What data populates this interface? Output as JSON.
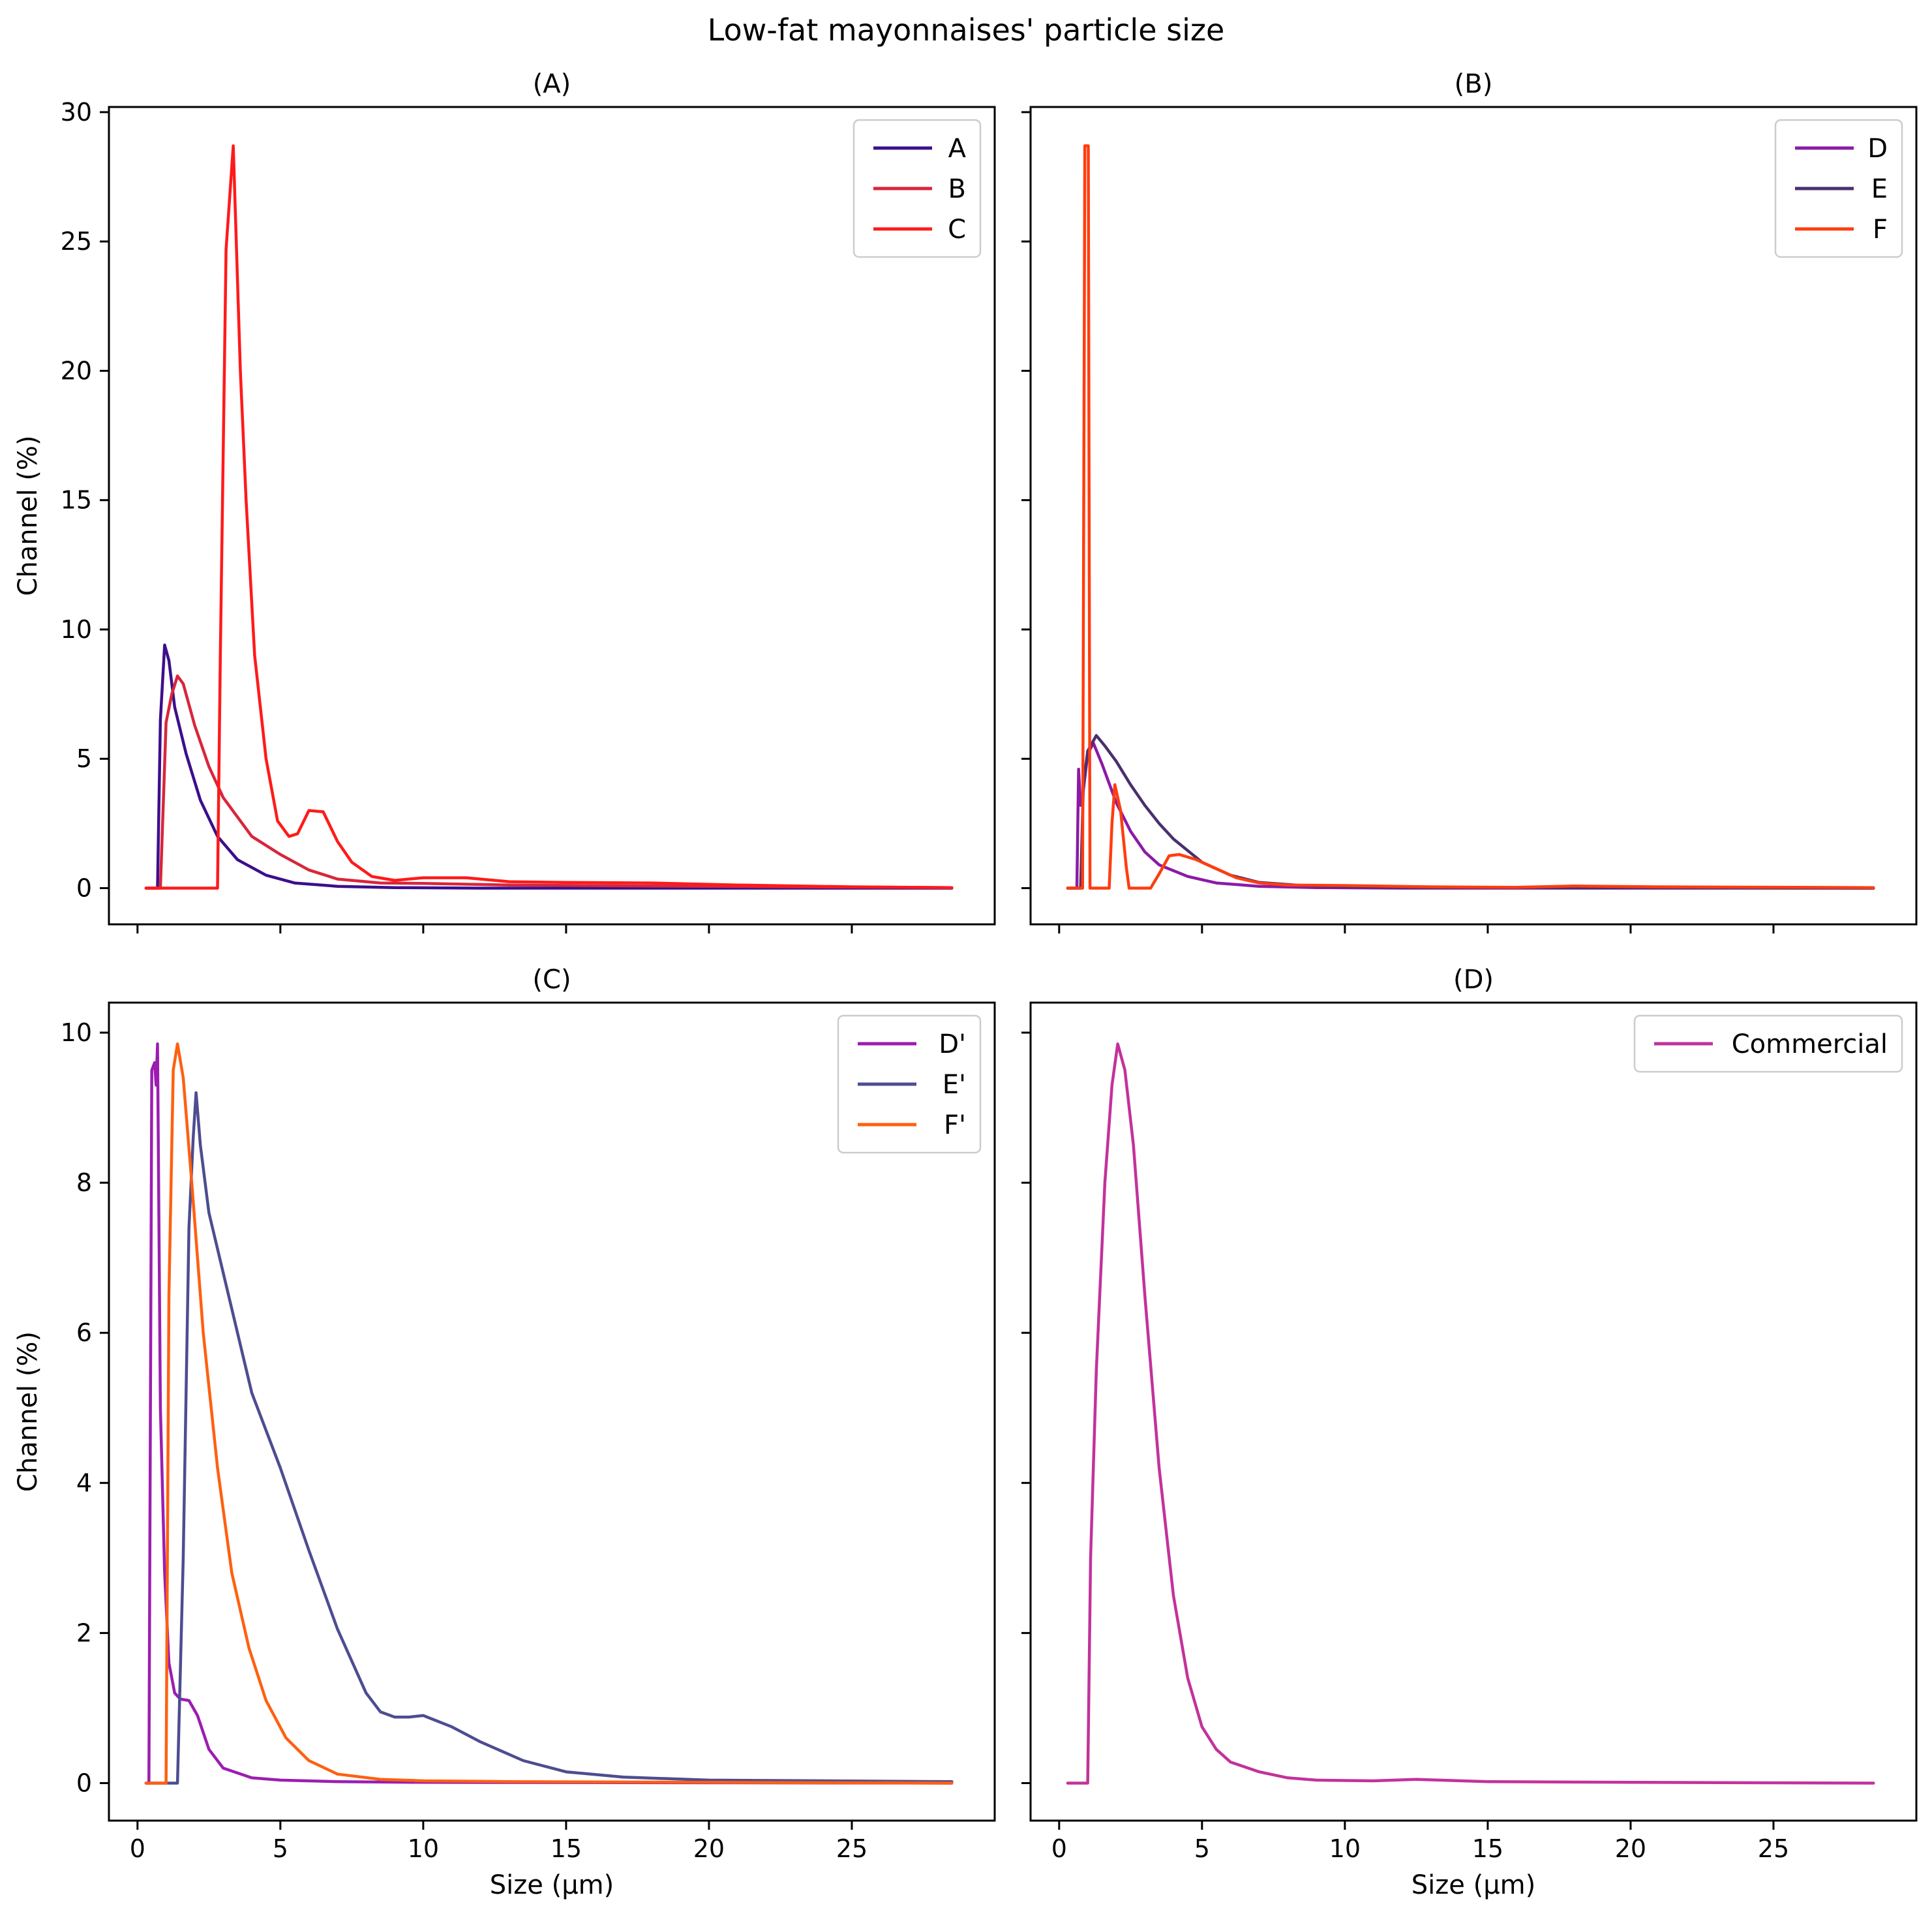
{
  "figure": {
    "title": "Low-fat mayonnaises' particle size"
  },
  "chart_data": [
    {
      "type": "line",
      "panel": "A",
      "title": "(A)",
      "xlabel": "",
      "ylabel": "Channel (%)",
      "xlim": [
        -1,
        30
      ],
      "ylim": [
        -1.4,
        30.2
      ],
      "xticks": [
        0,
        5,
        10,
        15,
        20,
        25
      ],
      "xtick_labels_visible": false,
      "yticks": [
        0,
        5,
        10,
        15,
        20,
        25,
        30
      ],
      "ytick_labels_visible": true,
      "legend": "top-right",
      "series": [
        {
          "name": "A",
          "color": "#3b0f8c",
          "points": [
            [
              0.3,
              0
            ],
            [
              0.7,
              0
            ],
            [
              0.8,
              6.5
            ],
            [
              0.95,
              9.4
            ],
            [
              1.1,
              8.8
            ],
            [
              1.3,
              7.0
            ],
            [
              1.7,
              5.2
            ],
            [
              2.2,
              3.4
            ],
            [
              2.8,
              2.0
            ],
            [
              3.5,
              1.1
            ],
            [
              4.5,
              0.5
            ],
            [
              5.5,
              0.2
            ],
            [
              7,
              0.07
            ],
            [
              9,
              0.02
            ],
            [
              12,
              0
            ],
            [
              28.5,
              0
            ]
          ]
        },
        {
          "name": "B",
          "color": "#d8263b",
          "points": [
            [
              0.3,
              0
            ],
            [
              0.8,
              0
            ],
            [
              1.0,
              6.4
            ],
            [
              1.2,
              7.5
            ],
            [
              1.4,
              8.2
            ],
            [
              1.6,
              7.9
            ],
            [
              2.0,
              6.3
            ],
            [
              2.5,
              4.7
            ],
            [
              3.0,
              3.5
            ],
            [
              4.0,
              2.0
            ],
            [
              5.0,
              1.3
            ],
            [
              6.0,
              0.7
            ],
            [
              7.0,
              0.35
            ],
            [
              8.5,
              0.2
            ],
            [
              10,
              0.18
            ],
            [
              13,
              0.12
            ],
            [
              18,
              0.08
            ],
            [
              25,
              0.04
            ],
            [
              28.5,
              0.02
            ]
          ]
        },
        {
          "name": "C",
          "color": "#ff1a1a",
          "points": [
            [
              0.3,
              0
            ],
            [
              2.8,
              0
            ],
            [
              2.9,
              9.0
            ],
            [
              3.1,
              24.7
            ],
            [
              3.35,
              28.7
            ],
            [
              3.6,
              20.0
            ],
            [
              3.8,
              15.0
            ],
            [
              4.1,
              9.0
            ],
            [
              4.5,
              5.0
            ],
            [
              4.9,
              2.6
            ],
            [
              5.3,
              2.0
            ],
            [
              5.6,
              2.1
            ],
            [
              6.0,
              3.0
            ],
            [
              6.5,
              2.95
            ],
            [
              7.0,
              1.8
            ],
            [
              7.5,
              1.0
            ],
            [
              8.2,
              0.45
            ],
            [
              9.0,
              0.3
            ],
            [
              10.0,
              0.4
            ],
            [
              11.5,
              0.4
            ],
            [
              13,
              0.25
            ],
            [
              15,
              0.22
            ],
            [
              18,
              0.2
            ],
            [
              21,
              0.12
            ],
            [
              25,
              0.05
            ],
            [
              28.5,
              0.02
            ]
          ]
        }
      ]
    },
    {
      "type": "line",
      "panel": "B",
      "title": "(B)",
      "xlabel": "",
      "ylabel": "",
      "xlim": [
        -1,
        30
      ],
      "ylim": [
        -1.4,
        30.2
      ],
      "xticks": [
        0,
        5,
        10,
        15,
        20,
        25
      ],
      "xtick_labels_visible": false,
      "yticks": [
        0,
        5,
        10,
        15,
        20,
        25,
        30
      ],
      "ytick_labels_visible": false,
      "legend": "top-right",
      "series": [
        {
          "name": "D",
          "color": "#8c1aa6",
          "points": [
            [
              0.3,
              0
            ],
            [
              0.62,
              0
            ],
            [
              0.68,
              4.6
            ],
            [
              0.75,
              3.2
            ],
            [
              0.85,
              3.8
            ],
            [
              1.0,
              5.2
            ],
            [
              1.2,
              5.6
            ],
            [
              1.5,
              4.8
            ],
            [
              2.0,
              3.3
            ],
            [
              2.5,
              2.2
            ],
            [
              3.0,
              1.4
            ],
            [
              3.5,
              0.9
            ],
            [
              4.5,
              0.45
            ],
            [
              5.5,
              0.2
            ],
            [
              7,
              0.07
            ],
            [
              9,
              0.02
            ],
            [
              12,
              0
            ],
            [
              28.5,
              0
            ]
          ]
        },
        {
          "name": "E",
          "color": "#4a2f6e",
          "points": [
            [
              0.3,
              0
            ],
            [
              0.75,
              0
            ],
            [
              0.85,
              4.0
            ],
            [
              1.0,
              5.3
            ],
            [
              1.3,
              5.9
            ],
            [
              1.6,
              5.5
            ],
            [
              2.0,
              4.9
            ],
            [
              2.5,
              4.0
            ],
            [
              3.0,
              3.2
            ],
            [
              3.5,
              2.5
            ],
            [
              4.0,
              1.9
            ],
            [
              5.0,
              1.0
            ],
            [
              6.0,
              0.5
            ],
            [
              7.0,
              0.22
            ],
            [
              8.5,
              0.1
            ],
            [
              10,
              0.05
            ],
            [
              13,
              0.02
            ],
            [
              28.5,
              0
            ]
          ]
        },
        {
          "name": "F",
          "color": "#ff3d0f",
          "points": [
            [
              0.3,
              0
            ],
            [
              0.82,
              0
            ],
            [
              0.9,
              28.7
            ],
            [
              1.02,
              28.7
            ],
            [
              1.08,
              0
            ],
            [
              1.75,
              0
            ],
            [
              1.85,
              2.5
            ],
            [
              1.95,
              4.0
            ],
            [
              2.15,
              3.0
            ],
            [
              2.35,
              0.8
            ],
            [
              2.45,
              0
            ],
            [
              3.2,
              0
            ],
            [
              3.5,
              0.55
            ],
            [
              3.85,
              1.25
            ],
            [
              4.2,
              1.3
            ],
            [
              4.8,
              1.1
            ],
            [
              5.5,
              0.75
            ],
            [
              6.2,
              0.4
            ],
            [
              7.0,
              0.2
            ],
            [
              8.0,
              0.12
            ],
            [
              10,
              0.1
            ],
            [
              13,
              0.05
            ],
            [
              16,
              0.03
            ],
            [
              18,
              0.08
            ],
            [
              21,
              0.05
            ],
            [
              28.5,
              0.02
            ]
          ]
        }
      ]
    },
    {
      "type": "line",
      "panel": "C",
      "title": "(C)",
      "xlabel": "Size (μm)",
      "ylabel": "Channel (%)",
      "xlim": [
        -1,
        30
      ],
      "ylim": [
        -0.5,
        10.4
      ],
      "xticks": [
        0,
        5,
        10,
        15,
        20,
        25
      ],
      "xtick_labels_visible": true,
      "yticks": [
        0,
        2,
        4,
        6,
        8,
        10
      ],
      "ytick_labels_visible": true,
      "legend": "top-right",
      "series": [
        {
          "name": "D'",
          "color": "#9b1eb0",
          "points": [
            [
              0.3,
              0
            ],
            [
              0.4,
              0
            ],
            [
              0.5,
              9.5
            ],
            [
              0.6,
              9.6
            ],
            [
              0.65,
              9.3
            ],
            [
              0.7,
              9.85
            ],
            [
              0.8,
              5.0
            ],
            [
              0.95,
              2.8
            ],
            [
              1.1,
              1.6
            ],
            [
              1.3,
              1.2
            ],
            [
              1.5,
              1.12
            ],
            [
              1.8,
              1.1
            ],
            [
              2.1,
              0.9
            ],
            [
              2.5,
              0.45
            ],
            [
              3.0,
              0.2
            ],
            [
              4.0,
              0.07
            ],
            [
              5.0,
              0.04
            ],
            [
              7,
              0.02
            ],
            [
              10,
              0.01
            ],
            [
              28.5,
              0
            ]
          ]
        },
        {
          "name": "E'",
          "color": "#4d4d91",
          "points": [
            [
              0.3,
              0
            ],
            [
              1.4,
              0
            ],
            [
              1.6,
              3.0
            ],
            [
              1.8,
              7.4
            ],
            [
              1.95,
              8.6
            ],
            [
              2.05,
              9.2
            ],
            [
              2.2,
              8.5
            ],
            [
              2.5,
              7.6
            ],
            [
              3.0,
              6.8
            ],
            [
              3.5,
              6.0
            ],
            [
              4.0,
              5.2
            ],
            [
              4.5,
              4.7
            ],
            [
              5.0,
              4.2
            ],
            [
              6.0,
              3.1
            ],
            [
              7.0,
              2.05
            ],
            [
              8.0,
              1.2
            ],
            [
              8.5,
              0.95
            ],
            [
              9.0,
              0.88
            ],
            [
              9.5,
              0.88
            ],
            [
              10.0,
              0.9
            ],
            [
              11.0,
              0.75
            ],
            [
              12.0,
              0.55
            ],
            [
              13.5,
              0.3
            ],
            [
              15,
              0.15
            ],
            [
              17,
              0.08
            ],
            [
              20,
              0.04
            ],
            [
              28.5,
              0.02
            ]
          ]
        },
        {
          "name": "F'",
          "color": "#ff6010",
          "points": [
            [
              0.3,
              0
            ],
            [
              1.0,
              0
            ],
            [
              1.1,
              6.5
            ],
            [
              1.25,
              9.5
            ],
            [
              1.4,
              9.85
            ],
            [
              1.6,
              9.4
            ],
            [
              1.9,
              8.0
            ],
            [
              2.3,
              6.0
            ],
            [
              2.8,
              4.2
            ],
            [
              3.3,
              2.8
            ],
            [
              3.9,
              1.8
            ],
            [
              4.5,
              1.1
            ],
            [
              5.2,
              0.6
            ],
            [
              6.0,
              0.3
            ],
            [
              7.0,
              0.12
            ],
            [
              8.5,
              0.05
            ],
            [
              10,
              0.03
            ],
            [
              13,
              0.02
            ],
            [
              20,
              0.01
            ],
            [
              28.5,
              0
            ]
          ]
        }
      ]
    },
    {
      "type": "line",
      "panel": "D",
      "title": "(D)",
      "xlabel": "Size (μm)",
      "ylabel": "",
      "xlim": [
        -1,
        30
      ],
      "ylim": [
        -0.5,
        10.4
      ],
      "xticks": [
        0,
        5,
        10,
        15,
        20,
        25
      ],
      "xtick_labels_visible": true,
      "yticks": [
        0,
        2,
        4,
        6,
        8,
        10
      ],
      "ytick_labels_visible": false,
      "legend": "top-right",
      "series": [
        {
          "name": "Commercial",
          "color": "#c2329b",
          "points": [
            [
              0.3,
              0
            ],
            [
              1.0,
              0
            ],
            [
              1.1,
              3.0
            ],
            [
              1.3,
              5.5
            ],
            [
              1.6,
              8.0
            ],
            [
              1.85,
              9.3
            ],
            [
              2.05,
              9.85
            ],
            [
              2.3,
              9.5
            ],
            [
              2.6,
              8.5
            ],
            [
              3.0,
              6.5
            ],
            [
              3.5,
              4.2
            ],
            [
              4.0,
              2.5
            ],
            [
              4.5,
              1.4
            ],
            [
              5.0,
              0.75
            ],
            [
              5.5,
              0.45
            ],
            [
              6.0,
              0.28
            ],
            [
              7.0,
              0.15
            ],
            [
              8.0,
              0.07
            ],
            [
              9.0,
              0.04
            ],
            [
              11,
              0.03
            ],
            [
              12.5,
              0.05
            ],
            [
              15,
              0.02
            ],
            [
              20,
              0.01
            ],
            [
              28.5,
              0
            ]
          ]
        }
      ]
    }
  ]
}
